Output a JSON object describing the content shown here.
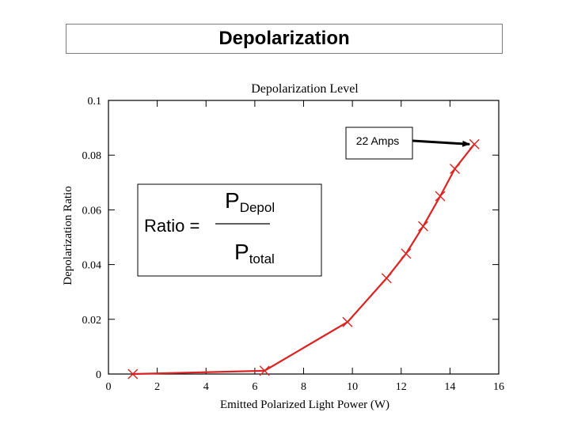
{
  "slide": {
    "title": "Depolarization"
  },
  "chart_data": {
    "type": "line",
    "title": "Depolarization Level",
    "xlabel": "Emitted Polarized Light Power (W)",
    "ylabel": "Depolarization Ratio",
    "xlim": [
      0,
      16
    ],
    "ylim": [
      0,
      0.1
    ],
    "xticks": [
      0,
      2,
      4,
      6,
      8,
      10,
      12,
      14,
      16
    ],
    "yticks": [
      0,
      0.02,
      0.04,
      0.06,
      0.08,
      0.1
    ],
    "ytick_labels": [
      "0",
      "0.02",
      "0.04",
      "0.06",
      "0.08",
      "0.1"
    ],
    "series": [
      {
        "color": "#dd2222",
        "marker": "x",
        "x": [
          1.0,
          6.4,
          9.8,
          11.4,
          12.2,
          12.9,
          13.6,
          14.2,
          15.0
        ],
        "y": [
          0.0,
          0.0012,
          0.019,
          0.035,
          0.044,
          0.054,
          0.065,
          0.075,
          0.084
        ]
      }
    ],
    "annotation": {
      "text": "22 Amps",
      "point_x": 15.0,
      "point_y": 0.084
    }
  },
  "formula": {
    "lhs": "Ratio =",
    "numerator_base": "P",
    "numerator_sub": "Depol",
    "denominator_base": "P",
    "denominator_sub": "total"
  }
}
